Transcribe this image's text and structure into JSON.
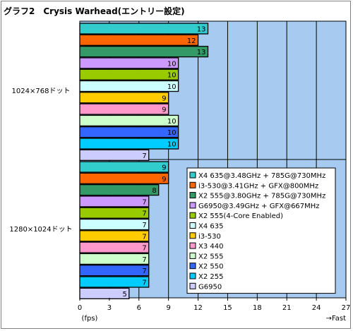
{
  "chart_data": {
    "type": "bar",
    "orientation": "horizontal",
    "title": "グラフ2　Crysis Warhead(エントリー設定)",
    "xunit": "(fps)",
    "xdirection": "→Fast",
    "xlim": [
      0,
      27
    ],
    "xticks": [
      0,
      3,
      6,
      9,
      12,
      15,
      18,
      21,
      24,
      27
    ],
    "grid": true,
    "legend_position": "right",
    "plot_background": "#a6caf0",
    "groups": [
      "1024×768ドット",
      "1280×1024ドット"
    ],
    "series": [
      {
        "name": "X4 635@3.48GHz + 785G@730MHz",
        "color": "#33cccc",
        "values": [
          13,
          9
        ]
      },
      {
        "name": "i3-530@3.41GHz + GFX@800MHz",
        "color": "#ff6600",
        "values": [
          12,
          9
        ]
      },
      {
        "name": "X2 555@3.80GHz + 785G@730MHz",
        "color": "#339966",
        "values": [
          13,
          8
        ]
      },
      {
        "name": "G6950@3.49GHz + GFX@667MHz",
        "color": "#cc99ff",
        "values": [
          10,
          7
        ]
      },
      {
        "name": "X2 555(4-Core Enabled)",
        "color": "#99cc00",
        "values": [
          10,
          7
        ]
      },
      {
        "name": "X4 635",
        "color": "#ccffff",
        "values": [
          10,
          7
        ]
      },
      {
        "name": "i3-530",
        "color": "#ffcc00",
        "values": [
          9,
          7
        ]
      },
      {
        "name": "X3 440",
        "color": "#ff99cc",
        "values": [
          9,
          7
        ]
      },
      {
        "name": "X2 555",
        "color": "#ccffcc",
        "values": [
          10,
          7
        ]
      },
      {
        "name": "X2 550",
        "color": "#3366ff",
        "values": [
          10,
          7
        ]
      },
      {
        "name": "X2 255",
        "color": "#00ccff",
        "values": [
          10,
          7
        ]
      },
      {
        "name": "G6950",
        "color": "#ccccff",
        "values": [
          7,
          5
        ]
      }
    ]
  }
}
